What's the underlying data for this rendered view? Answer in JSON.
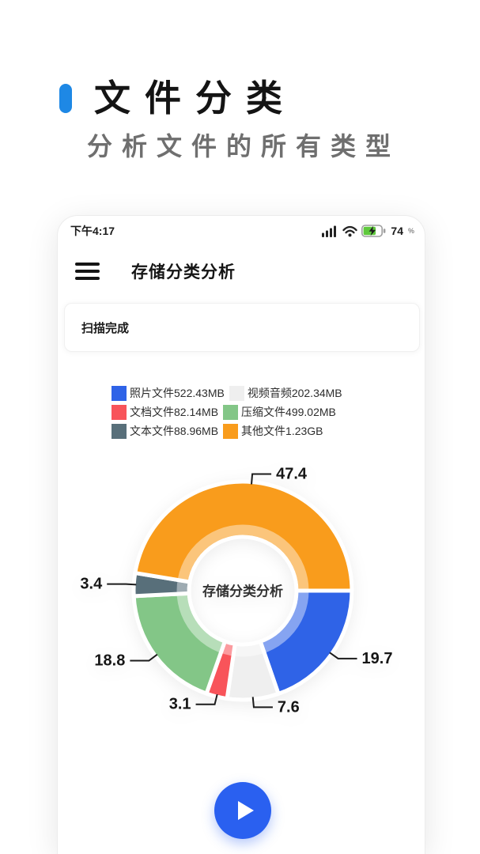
{
  "hero": {
    "title": "文件分类",
    "subtitle": "分析文件的所有类型",
    "accent_color": "#1E88E5"
  },
  "statusbar": {
    "time": "下午4:17",
    "battery_percent": "74",
    "percent_sign": "%",
    "icons": [
      "signal-icon",
      "wifi-icon",
      "battery-charging-icon"
    ]
  },
  "appbar": {
    "title": "存储分类分析",
    "menu_icon": "hamburger-menu-icon"
  },
  "scan_card": {
    "text": "扫描完成"
  },
  "chart_data": {
    "type": "pie",
    "variant": "donut",
    "title": "存储分类分析",
    "center_label": "存储分类分析",
    "start_angle_deg": 0,
    "direction": "clockwise",
    "unit": "percent",
    "slices": [
      {
        "name": "照片文件",
        "size": "522.43MB",
        "value": 19.7,
        "label": "19.7",
        "color": "#2F63E7"
      },
      {
        "name": "视频音频",
        "size": "202.34MB",
        "value": 7.6,
        "label": "7.6",
        "color": "#EFEFEF"
      },
      {
        "name": "文档文件",
        "size": "82.14MB",
        "value": 3.1,
        "label": "3.1",
        "color": "#F8545A"
      },
      {
        "name": "压缩文件",
        "size": "499.02MB",
        "value": 18.8,
        "label": "18.8",
        "color": "#83C687"
      },
      {
        "name": "文本文件",
        "size": "88.96MB",
        "value": 3.4,
        "label": "3.4",
        "color": "#586F7A"
      },
      {
        "name": "其他文件",
        "size": "1.23GB",
        "value": 47.4,
        "label": "47.4",
        "color": "#F99C1C"
      }
    ],
    "legend_labels": [
      "照片文件522.43MB",
      "视频音频202.34MB",
      "文档文件82.14MB",
      "压缩文件499.02MB",
      "文本文件88.96MB",
      "其他文件1.23GB"
    ],
    "legend_position": "top",
    "legend_columns": 2
  },
  "fab": {
    "color": "#2A60F0",
    "icon": "play"
  }
}
